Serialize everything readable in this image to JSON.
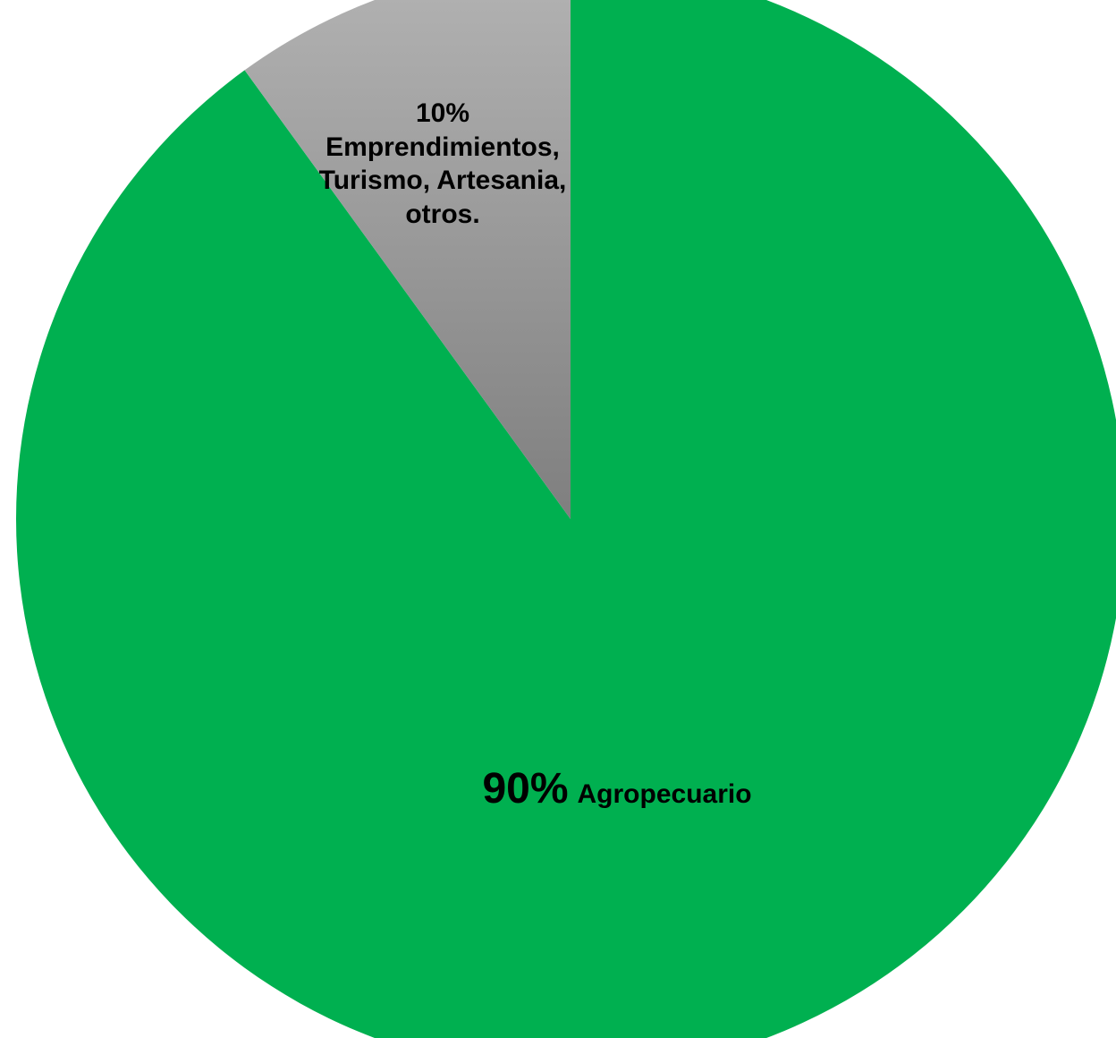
{
  "chart_data": {
    "type": "pie",
    "title": "",
    "start_angle_deg": 0,
    "direction": "clockwise",
    "slices": [
      {
        "label": "Agropecuario",
        "value": 90,
        "percent_label": "90%",
        "color": "#00b050",
        "label_lines": [
          "Agropecuario"
        ]
      },
      {
        "label": "Emprendimientos, Turismo, Artesania, otros.",
        "value": 10,
        "percent_label": "10%",
        "color_top": "#b3b3b3",
        "color_bottom": "#7f7f7f",
        "label_lines": [
          "Emprendimientos,",
          "Turismo, Artesania,",
          "otros."
        ]
      }
    ],
    "legend": "none"
  }
}
